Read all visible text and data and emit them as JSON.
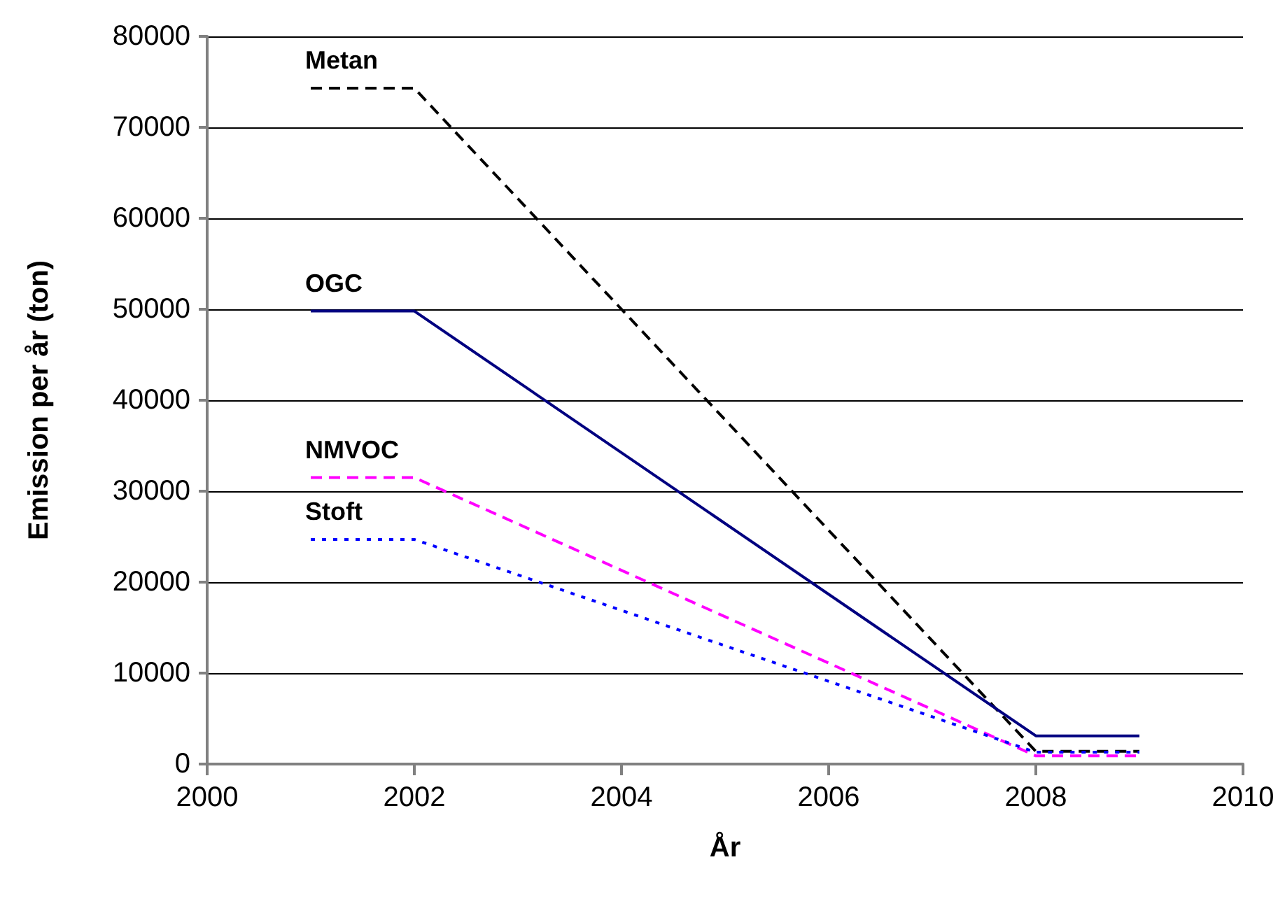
{
  "chart_data": {
    "type": "line",
    "xlabel": "År",
    "ylabel": "Emission per år (ton)",
    "x": [
      2001,
      2002,
      2008,
      2009
    ],
    "series": [
      {
        "name": "Metan",
        "color": "#000000",
        "line_style": "dashed",
        "values": [
          74300,
          74300,
          1400,
          1400
        ]
      },
      {
        "name": "OGC",
        "color": "#000080",
        "line_style": "solid",
        "values": [
          49800,
          49800,
          3100,
          3100
        ]
      },
      {
        "name": "NMVOC",
        "color": "#ff00ff",
        "line_style": "dashed",
        "values": [
          31500,
          31500,
          900,
          900
        ]
      },
      {
        "name": "Stoft",
        "color": "#0000ff",
        "line_style": "dotted",
        "values": [
          24700,
          24700,
          1300,
          1300
        ]
      }
    ],
    "xlim": [
      2000,
      2010
    ],
    "xticks": [
      2000,
      2002,
      2004,
      2006,
      2008,
      2010
    ],
    "ylim": [
      0,
      80000
    ],
    "yticks": [
      0,
      10000,
      20000,
      30000,
      40000,
      50000,
      60000,
      70000,
      80000
    ],
    "grid": "y",
    "legend": false,
    "marker": "none"
  }
}
